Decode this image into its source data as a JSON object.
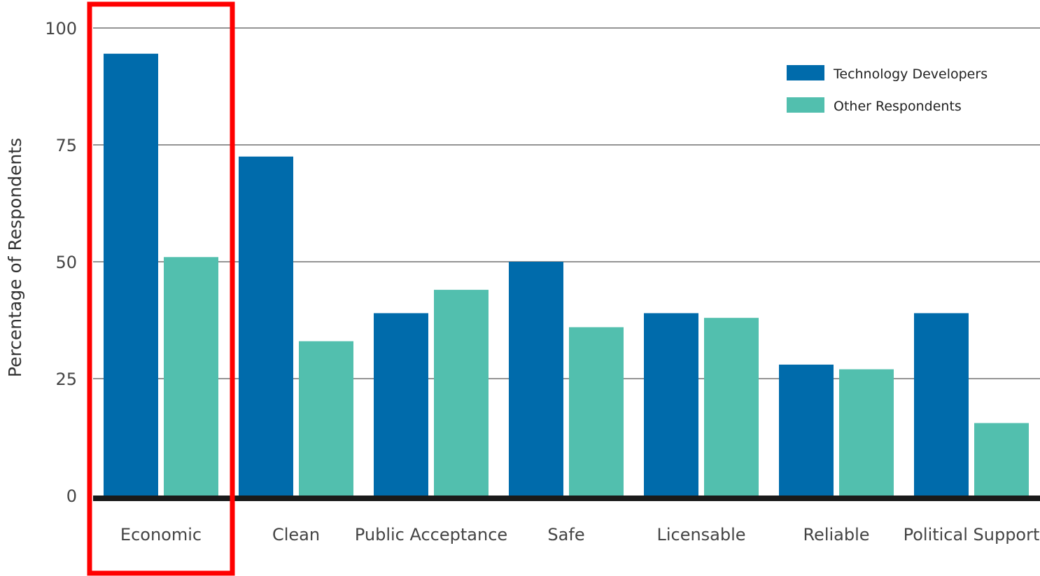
{
  "chart_data": {
    "type": "bar",
    "title": "",
    "xlabel": "",
    "ylabel": "Percentage of Respondents",
    "ylim": [
      0,
      100
    ],
    "yticks": [
      0,
      25,
      50,
      75,
      100
    ],
    "grid": true,
    "legend_position": "top-right",
    "categories": [
      "Economic",
      "Clean",
      "Public Acceptance",
      "Safe",
      "Licensable",
      "Reliable",
      "Political Support"
    ],
    "series": [
      {
        "name": "Technology Developers",
        "color": "#006bab",
        "values": [
          94.5,
          72.5,
          39,
          50,
          39,
          28,
          39
        ]
      },
      {
        "name": "Other Respondents",
        "color": "#52bfae",
        "values": [
          51,
          33,
          44,
          36,
          38,
          27,
          15.5
        ]
      }
    ],
    "highlight": {
      "category": "Economic",
      "color": "#ff0000"
    }
  }
}
